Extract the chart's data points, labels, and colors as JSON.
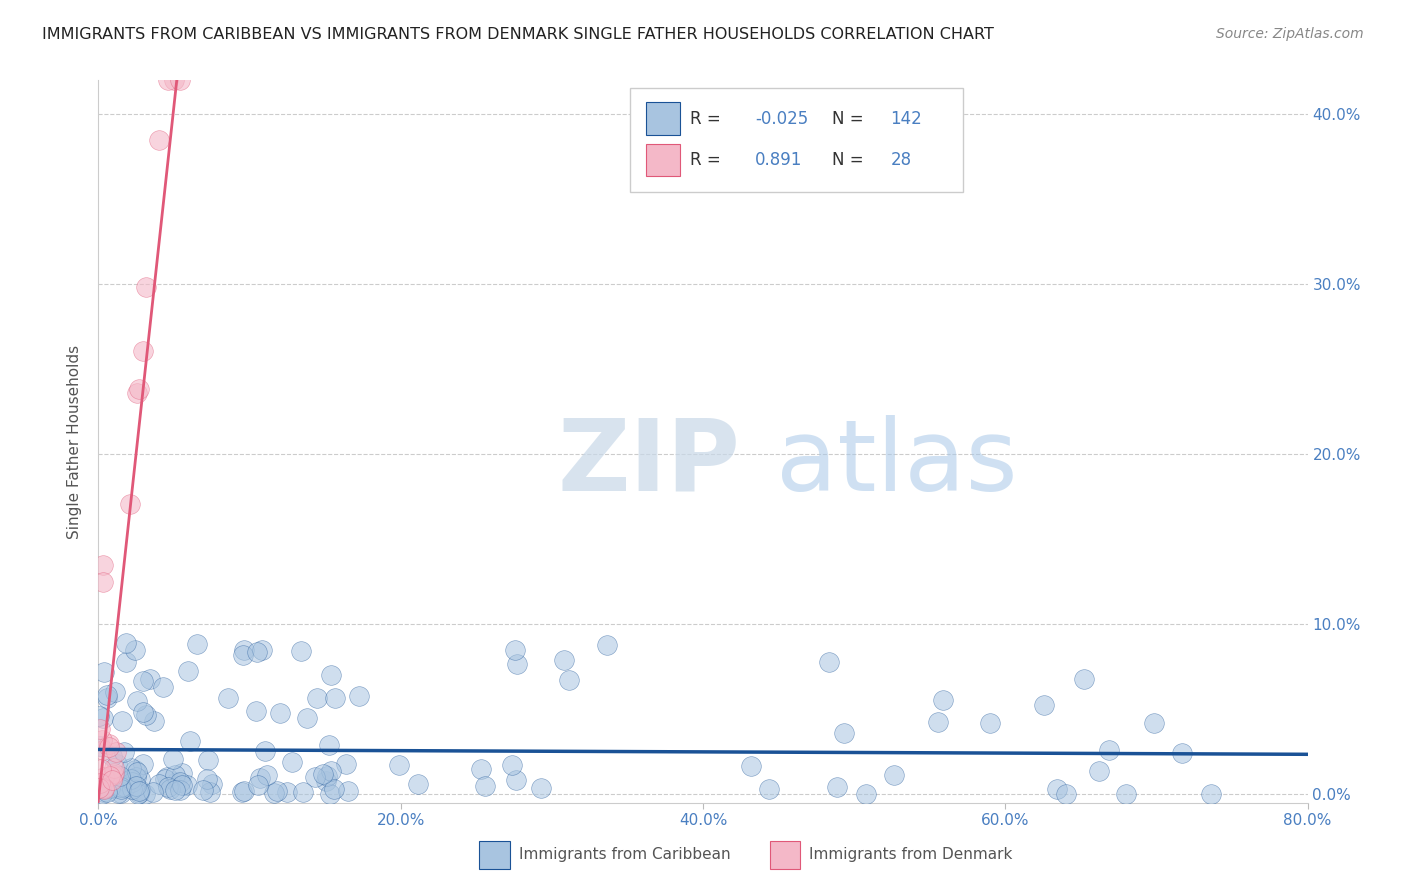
{
  "title": "IMMIGRANTS FROM CARIBBEAN VS IMMIGRANTS FROM DENMARK SINGLE FATHER HOUSEHOLDS CORRELATION CHART",
  "source": "Source: ZipAtlas.com",
  "ylabel": "Single Father Households",
  "xlabel_caribbean": "Immigrants from Caribbean",
  "xlabel_denmark": "Immigrants from Denmark",
  "watermark": "ZIPatlas",
  "blue_color": "#a8c4e0",
  "blue_line_color": "#1a5296",
  "pink_color": "#f4b8c8",
  "pink_line_color": "#e05878",
  "legend_text_color": "#4a7fc1",
  "R_blue": -0.025,
  "N_blue": 142,
  "R_pink": 0.891,
  "N_pink": 28,
  "xlim": [
    0.0,
    0.8
  ],
  "ylim": [
    -0.005,
    0.42
  ],
  "xticks": [
    0.0,
    0.2,
    0.4,
    0.6,
    0.8
  ],
  "yticks": [
    0.0,
    0.1,
    0.2,
    0.3,
    0.4
  ],
  "background_color": "#ffffff",
  "grid_color": "#cccccc",
  "title_color": "#222222",
  "tick_label_color": "#4a7fc1",
  "ylabel_color": "#555555"
}
